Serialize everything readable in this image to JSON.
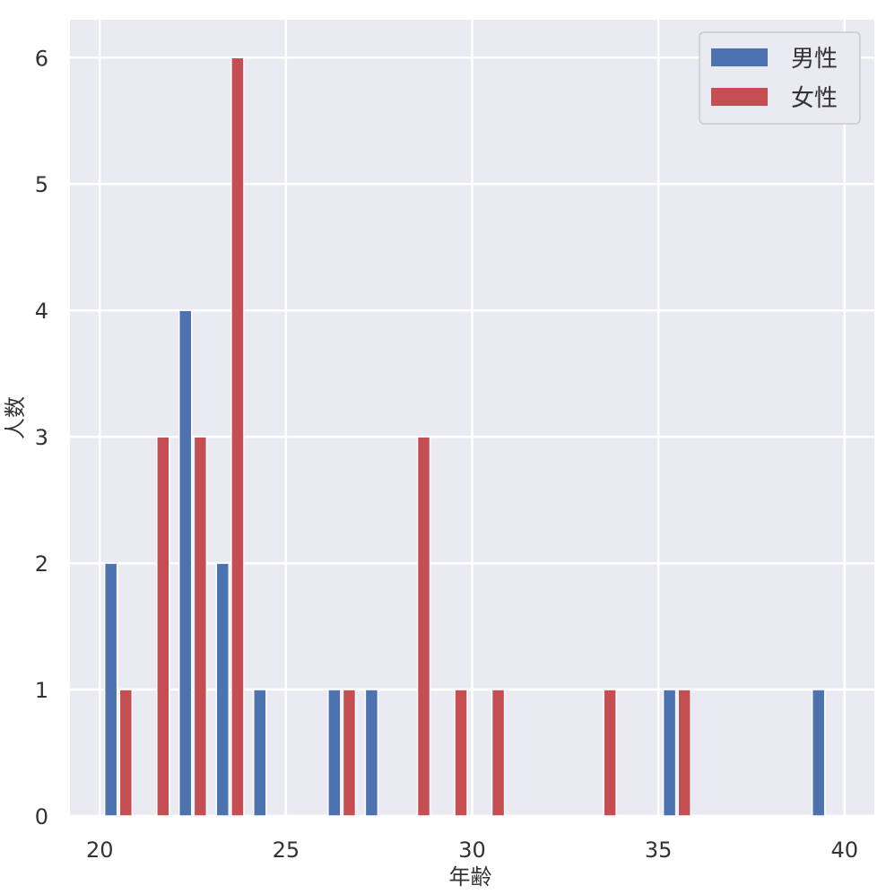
{
  "chart_data": {
    "type": "bar",
    "title": "",
    "xlabel": "年齢",
    "ylabel": "人数",
    "xlim": [
      19.2,
      40.8
    ],
    "ylim": [
      0,
      6.3
    ],
    "x_ticks": [
      20,
      25,
      30,
      35,
      40
    ],
    "y_ticks": [
      0,
      1,
      2,
      3,
      4,
      5,
      6
    ],
    "grid": true,
    "legend_position": "top-right",
    "series": [
      {
        "name": "男性",
        "color": "#4c72b0",
        "points": [
          {
            "x": 20.3,
            "y": 2
          },
          {
            "x": 22.3,
            "y": 4
          },
          {
            "x": 23.3,
            "y": 2
          },
          {
            "x": 24.3,
            "y": 1
          },
          {
            "x": 26.3,
            "y": 1
          },
          {
            "x": 27.3,
            "y": 1
          },
          {
            "x": 35.3,
            "y": 1
          },
          {
            "x": 39.3,
            "y": 1
          }
        ]
      },
      {
        "name": "女性",
        "color": "#c44e52",
        "points": [
          {
            "x": 20.7,
            "y": 1
          },
          {
            "x": 21.7,
            "y": 3
          },
          {
            "x": 22.7,
            "y": 3
          },
          {
            "x": 23.7,
            "y": 6
          },
          {
            "x": 26.7,
            "y": 1
          },
          {
            "x": 28.7,
            "y": 3
          },
          {
            "x": 29.7,
            "y": 1
          },
          {
            "x": 30.7,
            "y": 1
          },
          {
            "x": 33.7,
            "y": 1
          },
          {
            "x": 35.7,
            "y": 1
          }
        ]
      }
    ]
  }
}
